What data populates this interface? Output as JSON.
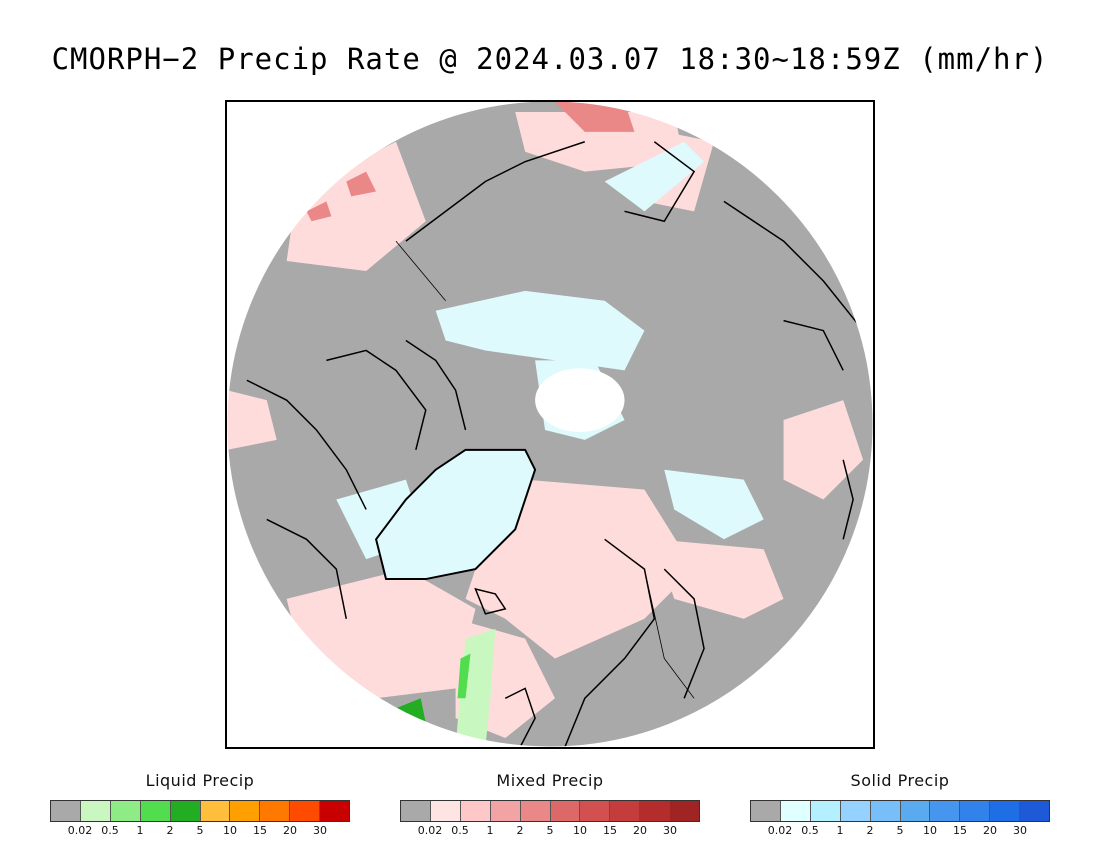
{
  "title": "CMORPH−2 Precip Rate @ 2024.03.07 18:30~18:59Z (mm/hr)",
  "map": {
    "projection": "north-polar-stereographic",
    "colors": {
      "no_precip": "#a9a9a9",
      "frame": "#000000",
      "coastline": "#000000"
    }
  },
  "legends": [
    {
      "title": "Liquid Precip",
      "colors": [
        "#a9a9a9",
        "#c8f7c0",
        "#8eeb86",
        "#52dd4f",
        "#22ad22",
        "#ffbf3c",
        "#ffa000",
        "#ff7800",
        "#ff4b00",
        "#c80000"
      ],
      "ticks": [
        "0.02",
        "0.5",
        "1",
        "2",
        "5",
        "10",
        "15",
        "20",
        "30"
      ]
    },
    {
      "title": "Mixed Precip",
      "colors": [
        "#a9a9a9",
        "#ffe4e4",
        "#ffc8c8",
        "#f2a4a4",
        "#ea8888",
        "#dd6868",
        "#d25050",
        "#c43c3c",
        "#b42c2c",
        "#a02424"
      ],
      "ticks": [
        "0.02",
        "0.5",
        "1",
        "2",
        "5",
        "10",
        "15",
        "20",
        "30"
      ]
    },
    {
      "title": "Solid Precip",
      "colors": [
        "#a9a9a9",
        "#e0ffff",
        "#b4f0ff",
        "#96d2ff",
        "#78bef8",
        "#5aaaf0",
        "#4696f0",
        "#3282eb",
        "#1e6ee6",
        "#1e5ad7"
      ],
      "ticks": [
        "0.02",
        "0.5",
        "1",
        "2",
        "5",
        "10",
        "15",
        "20",
        "30"
      ]
    }
  ]
}
